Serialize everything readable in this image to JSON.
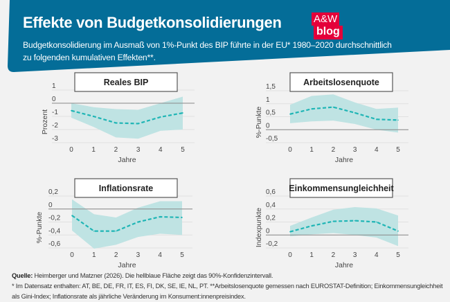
{
  "header": {
    "title": "Effekte von Budgetkonsolidierungen",
    "subtitle": "Budgetkonsolidierung im Ausmaß von 1%-Punkt des BIP führte in der EU* 1980–2020 durchschnittlich zu folgenden kumulativen Effekten**.",
    "logo_line1": "A&W",
    "logo_line2": "blog"
  },
  "colors": {
    "banner": "#046d98",
    "logo": "#e4003a",
    "band": "#bfe3e3",
    "line": "#1fb5b5",
    "background": "#f2f2f2"
  },
  "chart_data": [
    {
      "type": "line",
      "title": "Reales BIP",
      "xlabel": "Jahre",
      "ylabel": "Prozent",
      "x": [
        0,
        1,
        2,
        3,
        4,
        5
      ],
      "ylim": [
        -3,
        1
      ],
      "yticks": [
        1,
        0,
        -1,
        -2,
        -3
      ],
      "ytick_labels": [
        "1",
        "0",
        "-1",
        "-2",
        "-3"
      ],
      "grid": true,
      "series": [
        {
          "values": [
            -0.56,
            -1.0,
            -1.5,
            -1.55,
            -1.05,
            -0.74
          ],
          "style": "dashed"
        }
      ],
      "band": {
        "upper": [
          0,
          -0.3,
          -0.45,
          -0.5,
          0,
          0.5
        ],
        "lower": [
          -1.1,
          -1.8,
          -2.6,
          -2.7,
          -2.1,
          -2.0
        ]
      }
    },
    {
      "type": "line",
      "title": "Arbeitslosenquote",
      "xlabel": "Jahre",
      "ylabel": "%-Punkte",
      "x": [
        0,
        1,
        2,
        3,
        4,
        5
      ],
      "ylim": [
        -0.5,
        1.5
      ],
      "yticks": [
        1.5,
        1,
        0.5,
        0,
        -0.5
      ],
      "ytick_labels": [
        "1,5",
        "1",
        "0,5",
        "0",
        "-0,5"
      ],
      "grid": true,
      "series": [
        {
          "values": [
            0.6,
            0.8,
            0.87,
            0.65,
            0.4,
            0.37
          ],
          "style": "dashed"
        }
      ],
      "band": {
        "upper": [
          0.96,
          1.3,
          1.36,
          1.05,
          0.8,
          0.85
        ],
        "lower": [
          0.25,
          0.32,
          0.35,
          0.22,
          0,
          -0.11
        ]
      }
    },
    {
      "type": "line",
      "title": "Inflationsrate",
      "xlabel": "Jahre",
      "ylabel": "%-Punkte",
      "x": [
        0,
        1,
        2,
        3,
        4,
        5
      ],
      "ylim": [
        -0.6,
        0.2
      ],
      "yticks": [
        0.2,
        0,
        -0.2,
        -0.4,
        -0.6
      ],
      "ytick_labels": [
        "0,2",
        "0",
        "-0,2",
        "-0,4",
        "-0,6"
      ],
      "grid": true,
      "series": [
        {
          "values": [
            -0.1,
            -0.34,
            -0.34,
            -0.2,
            -0.12,
            -0.13
          ],
          "style": "dashed"
        }
      ],
      "band": {
        "upper": [
          0.15,
          -0.08,
          -0.13,
          0.02,
          0.12,
          0.12
        ],
        "lower": [
          -0.33,
          -0.61,
          -0.55,
          -0.43,
          -0.38,
          -0.4
        ]
      }
    },
    {
      "type": "line",
      "title": "Einkommensungleichheit",
      "xlabel": "Jahre",
      "ylabel": "Indexpunkte",
      "x": [
        0,
        1,
        2,
        3,
        4,
        5
      ],
      "ylim": [
        -0.2,
        0.6
      ],
      "yticks": [
        0.6,
        0.4,
        0.2,
        0,
        -0.2
      ],
      "ytick_labels": [
        "0,6",
        "0,4",
        "0,2",
        "0",
        "-0,2"
      ],
      "grid": true,
      "series": [
        {
          "values": [
            0.05,
            0.14,
            0.21,
            0.22,
            0.2,
            0.06
          ],
          "style": "dashed"
        }
      ],
      "band": {
        "upper": [
          0.14,
          0.27,
          0.39,
          0.43,
          0.41,
          0.3
        ],
        "lower": [
          -0.02,
          0.01,
          0.03,
          0,
          -0.04,
          -0.17
        ]
      }
    }
  ],
  "footer": {
    "source_label": "Quelle:",
    "source_text": " Heimberger und Matzner (2026). Die hellblaue Fläche zeigt das 90%-Konfidenzintervall.",
    "note": "* Im Datensatz enthalten: AT, BE, DE, FR, IT, ES, FI, DK, SE, IE, NL, PT.  **Arbeitslosenquote gemessen nach EUROSTAT-Definition; Einkommensungleichheit als Gini-Index; Inflationsrate als jährliche Veränderung im Konsument:innenpreisindex."
  }
}
